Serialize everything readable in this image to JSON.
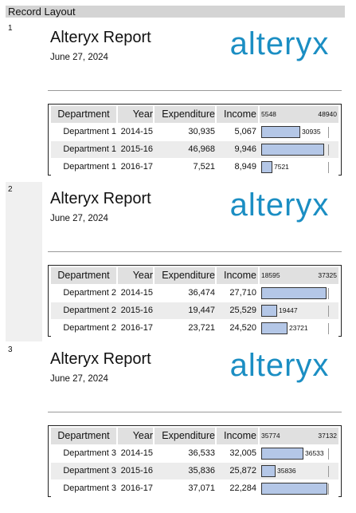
{
  "window": {
    "title": "Record Layout"
  },
  "table_headers": {
    "department": "Department",
    "year": "Year",
    "expenditure": "Expenditure",
    "income": "Income"
  },
  "records": [
    {
      "number": "1",
      "title": "Alteryx Report",
      "date": "June 27, 2024",
      "logo_text": "alteryx",
      "bar_min": "5548",
      "bar_max": "48940",
      "rows": [
        {
          "department": "Department 1",
          "year": "2014-15",
          "expenditure": "30,935",
          "income": "5,067",
          "bar_label": "30935",
          "bar_fraction": 0.58
        },
        {
          "department": "Department 1",
          "year": "2015-16",
          "expenditure": "46,968",
          "income": "9,946",
          "bar_label": "",
          "bar_fraction": 0.93
        },
        {
          "department": "Department 1",
          "year": "2016-17",
          "expenditure": "7,521",
          "income": "8,949",
          "bar_label": "7521",
          "bar_fraction": 0.17
        }
      ]
    },
    {
      "number": "2",
      "title": "Alteryx Report",
      "date": "June 27, 2024",
      "logo_text": "alteryx",
      "bar_min": "18595",
      "bar_max": "37325",
      "rows": [
        {
          "department": "Department 2",
          "year": "2014-15",
          "expenditure": "36,474",
          "income": "27,710",
          "bar_label": "",
          "bar_fraction": 0.96
        },
        {
          "department": "Department 2",
          "year": "2015-16",
          "expenditure": "19,447",
          "income": "25,529",
          "bar_label": "19447",
          "bar_fraction": 0.23
        },
        {
          "department": "Department 2",
          "year": "2016-17",
          "expenditure": "23,721",
          "income": "24,520",
          "bar_label": "23721",
          "bar_fraction": 0.39
        }
      ]
    },
    {
      "number": "3",
      "title": "Alteryx Report",
      "date": "June 27, 2024",
      "logo_text": "alteryx",
      "bar_min": "35774",
      "bar_max": "37132",
      "rows": [
        {
          "department": "Department 3",
          "year": "2014-15",
          "expenditure": "36,533",
          "income": "32,005",
          "bar_label": "36533",
          "bar_fraction": 0.62
        },
        {
          "department": "Department 3",
          "year": "2015-16",
          "expenditure": "35,836",
          "income": "25,872",
          "bar_label": "35836",
          "bar_fraction": 0.21
        },
        {
          "department": "Department 3",
          "year": "2016-17",
          "expenditure": "37,071",
          "income": "22,284",
          "bar_label": "",
          "bar_fraction": 0.98
        }
      ]
    }
  ],
  "colors": {
    "logo": "#1b8ec3",
    "bar_fill": "#b4c7e7",
    "header_row": "#e0e0e0",
    "shaded_record": "#f0f0f0"
  }
}
